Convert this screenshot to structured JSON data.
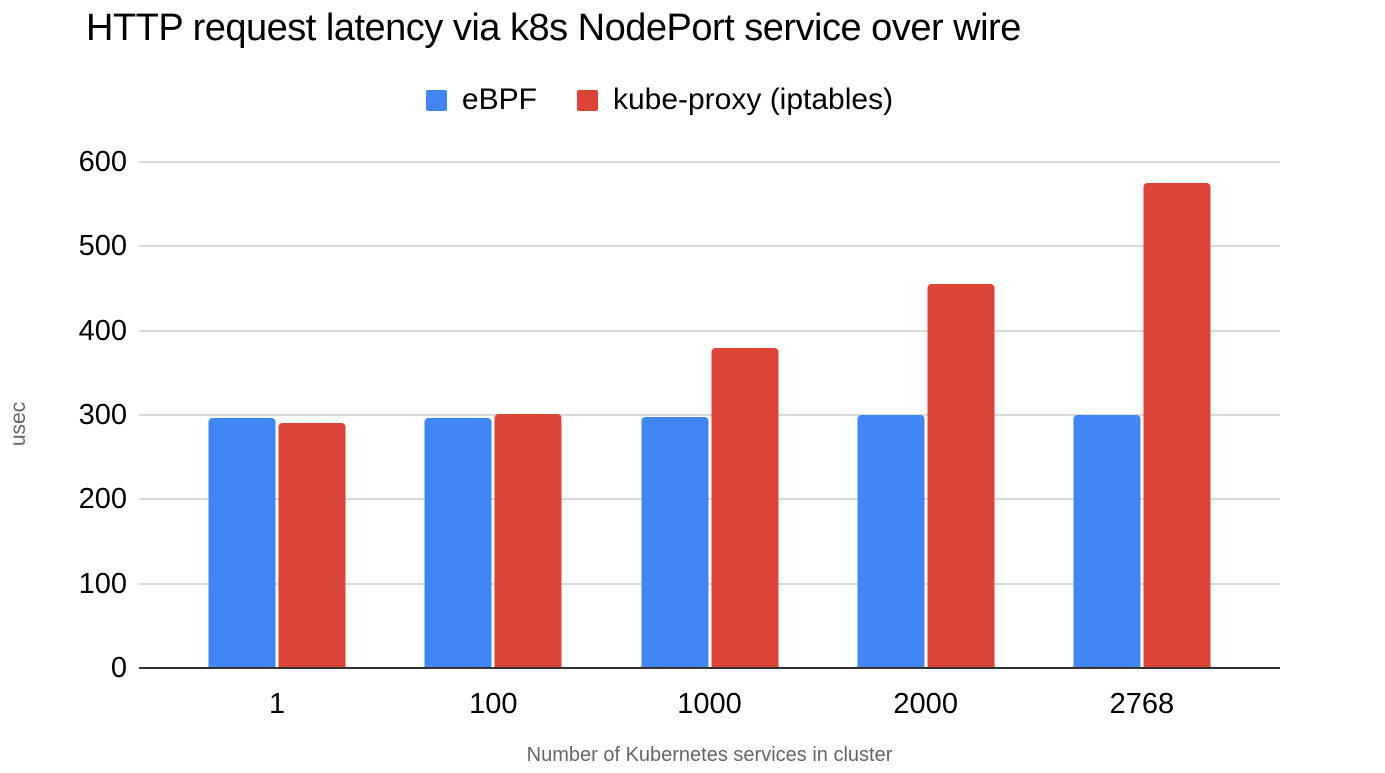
{
  "page": {
    "background": "#ffffff"
  },
  "styles": {
    "title_color": "#000000",
    "tick_label_color": "#000000",
    "axis_title_color": "#666666",
    "gridline_color": "#d9d9d9",
    "axis_line_color": "#333333",
    "accent_blue": "#4285f4",
    "accent_red": "#db4437"
  },
  "legend": {
    "items": [
      {
        "label": "eBPF",
        "color": "#4285f4"
      },
      {
        "label": "kube-proxy (iptables)",
        "color": "#db4437"
      }
    ]
  },
  "chart_data": {
    "type": "bar",
    "title": "HTTP request latency via k8s NodePort service over wire",
    "xlabel": "Number of Kubernetes services in cluster",
    "ylabel": "usec",
    "categories": [
      "1",
      "100",
      "1000",
      "2000",
      "2768"
    ],
    "series": [
      {
        "name": "eBPF",
        "color": "#4285f4",
        "values": [
          297,
          296,
          298,
          300,
          300
        ]
      },
      {
        "name": "kube-proxy (iptables)",
        "color": "#db4437",
        "values": [
          290,
          301,
          380,
          455,
          575
        ]
      }
    ],
    "ylim": [
      0,
      600
    ],
    "yticks": [
      0,
      100,
      200,
      300,
      400,
      500,
      600
    ],
    "grid": true,
    "legend_position": "top"
  }
}
